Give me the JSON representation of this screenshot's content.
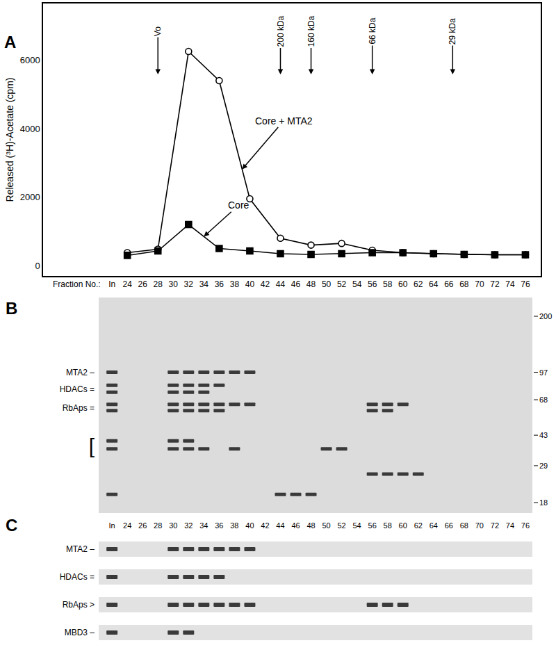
{
  "chart_data": {
    "type": "line",
    "y_title": "Released (³H)-Acetate (cpm)",
    "x_title": "Fraction No.:",
    "x": [
      24,
      28,
      32,
      36,
      40,
      44,
      48,
      52,
      56,
      60,
      64,
      68,
      72,
      76
    ],
    "series": [
      {
        "name": "Core + MTA2",
        "color": "#000000",
        "marker": "circle-open",
        "line_style": "solid",
        "values": [
          380,
          480,
          6250,
          5400,
          1950,
          800,
          600,
          650,
          450,
          380,
          350,
          330,
          320,
          320
        ]
      },
      {
        "name": "Core",
        "color": "#000000",
        "marker": "square",
        "line_style": "solid",
        "values": [
          300,
          430,
          1200,
          500,
          430,
          350,
          330,
          350,
          380,
          380,
          350,
          330,
          320,
          320
        ]
      }
    ],
    "xlim": [
      13,
      78
    ],
    "ylim": [
      -300,
      7650
    ],
    "xticks": [
      {
        "value": 22,
        "label": "In"
      },
      24,
      26,
      28,
      30,
      32,
      34,
      36,
      38,
      40,
      42,
      44,
      46,
      48,
      50,
      52,
      54,
      56,
      58,
      60,
      62,
      64,
      66,
      68,
      70,
      72,
      74,
      76
    ],
    "yticks": [
      0,
      2000,
      4000,
      6000
    ],
    "grid": false,
    "annotations": [
      {
        "x": 28,
        "text": "Vo"
      },
      {
        "x": 44,
        "text": "200 kDa"
      },
      {
        "x": 48,
        "text": "160 kDa"
      },
      {
        "x": 56,
        "text": "66 kDa"
      },
      {
        "x": 66.5,
        "text": "29 kDa"
      }
    ]
  },
  "panel_labels": [
    "A",
    "B",
    "C"
  ],
  "gel_b": {
    "mw_markers": [
      200,
      97,
      68,
      43,
      29,
      18
    ],
    "labels": [
      {
        "text": "MTA2 –",
        "mw": 97
      },
      {
        "text": "HDACs =",
        "mw": 78
      },
      {
        "text": "RbAps =",
        "mw": 61
      },
      {
        "text": "[",
        "mw": 37
      }
    ],
    "bands": [
      {
        "mw": 97,
        "fractions": [
          "In",
          "30",
          "32",
          "34",
          "36",
          "38",
          "40"
        ]
      },
      {
        "mw": 82,
        "fractions": [
          "In",
          "30",
          "32",
          "34",
          "36"
        ]
      },
      {
        "mw": 75,
        "fractions": [
          "In",
          "30",
          "32",
          "34"
        ]
      },
      {
        "mw": 64,
        "fractions": [
          "In",
          "30",
          "32",
          "34",
          "36",
          "38",
          "40",
          "56",
          "58",
          "60"
        ]
      },
      {
        "mw": 59,
        "fractions": [
          "In",
          "30",
          "32",
          "34",
          "36",
          "56",
          "58"
        ]
      },
      {
        "mw": 40,
        "fractions": [
          "In",
          "30",
          "32"
        ]
      },
      {
        "mw": 36,
        "fractions": [
          "In",
          "30",
          "32",
          "34",
          "38",
          "50",
          "52"
        ]
      },
      {
        "mw": 26,
        "fractions": [
          "56",
          "58",
          "60",
          "62"
        ]
      },
      {
        "mw": 20,
        "fractions": [
          "In",
          "44",
          "46",
          "48"
        ]
      }
    ]
  },
  "gel_c": {
    "lanes": [
      "In",
      "24",
      "26",
      "28",
      "30",
      "32",
      "34",
      "36",
      "38",
      "40",
      "42",
      "44",
      "46",
      "48",
      "50",
      "52",
      "54",
      "56",
      "58",
      "60",
      "62",
      "64",
      "66",
      "68",
      "70",
      "72",
      "74",
      "76"
    ],
    "rows": [
      {
        "label": "MTA2 –",
        "fractions": [
          "In",
          "30",
          "32",
          "34",
          "36",
          "38",
          "40"
        ]
      },
      {
        "label": "HDACs =",
        "fractions": [
          "In",
          "30",
          "32",
          "34",
          "36"
        ]
      },
      {
        "label": "RbAps >",
        "fractions": [
          "In",
          "30",
          "32",
          "34",
          "36",
          "38",
          "40",
          "56",
          "58",
          "60"
        ]
      },
      {
        "label": "MBD3 –",
        "fractions": [
          "In",
          "30",
          "32"
        ]
      }
    ]
  }
}
